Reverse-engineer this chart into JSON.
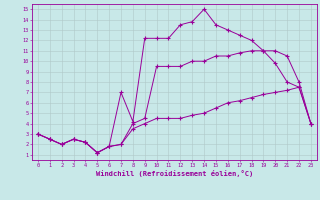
{
  "title": "",
  "xlabel": "Windchill (Refroidissement éolien,°C)",
  "bg_color": "#c8e8e8",
  "grid_color": "#b0c8c8",
  "line_color": "#990099",
  "xlim": [
    -0.5,
    23.5
  ],
  "ylim": [
    0.5,
    15.5
  ],
  "xticks": [
    0,
    1,
    2,
    3,
    4,
    5,
    6,
    7,
    8,
    9,
    10,
    11,
    12,
    13,
    14,
    15,
    16,
    17,
    18,
    19,
    20,
    21,
    22,
    23
  ],
  "yticks": [
    1,
    2,
    3,
    4,
    5,
    6,
    7,
    8,
    9,
    10,
    11,
    12,
    13,
    14,
    15
  ],
  "series": [
    {
      "x": [
        0,
        1,
        2,
        3,
        4,
        5,
        6,
        7,
        8,
        9,
        10,
        11,
        12,
        13,
        14,
        15,
        16,
        17,
        18,
        19,
        20,
        21,
        22,
        23
      ],
      "y": [
        3.0,
        2.5,
        2.0,
        2.5,
        2.2,
        1.2,
        1.8,
        2.0,
        3.5,
        4.0,
        4.5,
        4.5,
        4.5,
        4.8,
        5.0,
        5.5,
        6.0,
        6.2,
        6.5,
        6.8,
        7.0,
        7.2,
        7.5,
        4.0
      ]
    },
    {
      "x": [
        0,
        1,
        2,
        3,
        4,
        5,
        6,
        7,
        8,
        9,
        10,
        11,
        12,
        13,
        14,
        15,
        16,
        17,
        18,
        19,
        20,
        21,
        22,
        23
      ],
      "y": [
        3.0,
        2.5,
        2.0,
        2.5,
        2.2,
        1.2,
        1.8,
        2.0,
        4.0,
        4.5,
        9.5,
        9.5,
        9.5,
        10.0,
        10.0,
        10.5,
        10.5,
        10.8,
        11.0,
        11.0,
        11.0,
        10.5,
        8.0,
        4.0
      ]
    },
    {
      "x": [
        0,
        1,
        2,
        3,
        4,
        5,
        6,
        7,
        8,
        9,
        10,
        11,
        12,
        13,
        14,
        15,
        16,
        17,
        18,
        19,
        20,
        21,
        22,
        23
      ],
      "y": [
        3.0,
        2.5,
        2.0,
        2.5,
        2.2,
        1.2,
        1.8,
        7.0,
        4.2,
        12.2,
        12.2,
        12.2,
        13.5,
        13.8,
        15.0,
        13.5,
        13.0,
        12.5,
        12.0,
        11.0,
        9.8,
        8.0,
        7.5,
        4.0
      ]
    }
  ]
}
